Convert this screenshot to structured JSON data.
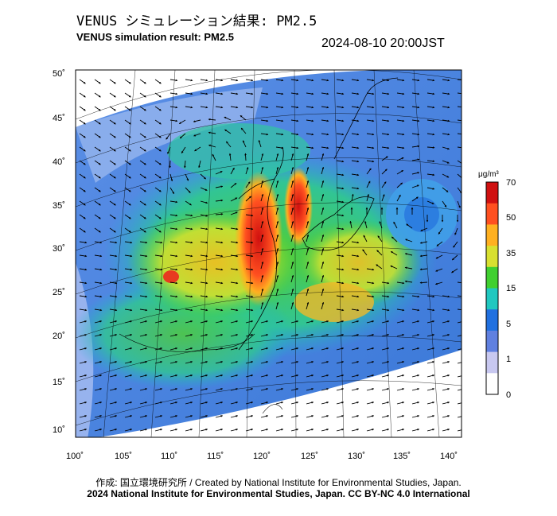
{
  "header": {
    "title_jp": "VENUS シミュレーション結果: PM2.5",
    "title_en": "VENUS simulation result: PM2.5",
    "timestamp": "2024-08-10 20:00JST"
  },
  "map": {
    "lat_ticks": [
      "50˚",
      "45˚",
      "40˚",
      "35˚",
      "30˚",
      "25˚",
      "20˚",
      "15˚",
      "10˚"
    ],
    "lon_ticks": [
      "100˚",
      "105˚",
      "110˚",
      "115˚",
      "120˚",
      "125˚",
      "130˚",
      "135˚",
      "140˚"
    ]
  },
  "colorbar": {
    "units": "μg/m³",
    "levels": [
      "70",
      "50",
      "35",
      "15",
      "5",
      "1",
      "0"
    ],
    "colors": [
      "#d01010",
      "#ff5020",
      "#ffb020",
      "#d8e030",
      "#40d030",
      "#20c8c0",
      "#2070e0",
      "#6080e0",
      "#c8c8f0",
      "#ffffff"
    ]
  },
  "footer": {
    "credit": "作成: 国立環境研究所 / Created by National Institute for Environmental Studies, Japan.",
    "license": "2024 National Institute for Environmental Studies, Japan. CC BY-NC 4.0 International"
  }
}
